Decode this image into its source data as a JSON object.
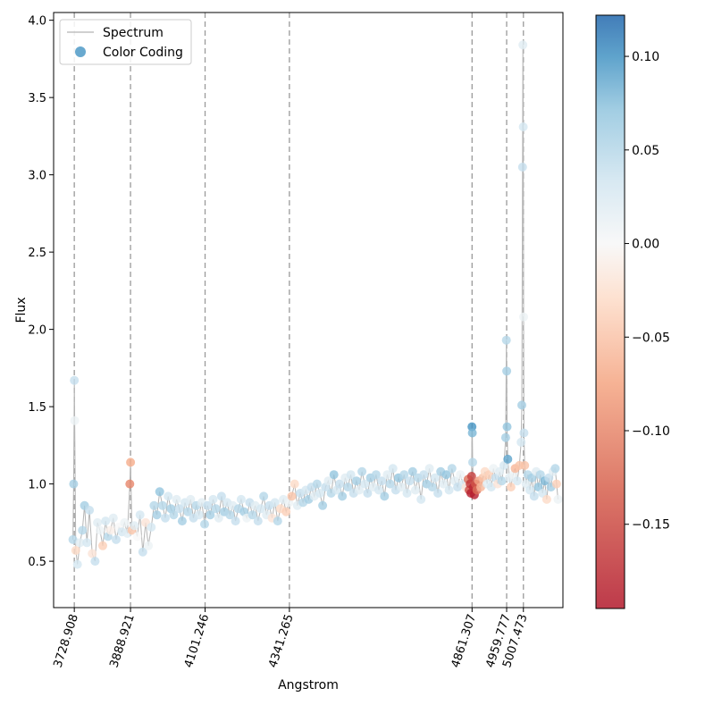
{
  "chart_data": {
    "type": "scatter",
    "title": "",
    "xlabel": "Angstrom",
    "ylabel": "Flux",
    "xlim": [
      3670,
      5120
    ],
    "ylim": [
      0.2,
      4.05
    ],
    "y_ticks": [
      "0.5",
      "1.0",
      "1.5",
      "2.0",
      "2.5",
      "3.0",
      "3.5",
      "4.0"
    ],
    "y_tick_values": [
      0.5,
      1.0,
      1.5,
      2.0,
      2.5,
      3.0,
      3.5,
      4.0
    ],
    "line_markers": [
      {
        "label": "3728.908",
        "x": 3728.908
      },
      {
        "label": "3888.921",
        "x": 3888.921
      },
      {
        "label": "4101.246",
        "x": 4101.246
      },
      {
        "label": "4341.265",
        "x": 4341.265
      },
      {
        "label": "4861.307",
        "x": 4861.307
      },
      {
        "label": "4959.777",
        "x": 4959.777
      },
      {
        "label": "5007.473",
        "x": 5007.473
      }
    ],
    "legend": {
      "position": "top-left",
      "entries": [
        {
          "label": "Spectrum",
          "kind": "line"
        },
        {
          "label": "Color Coding",
          "kind": "marker"
        }
      ]
    },
    "colorbar": {
      "range": [
        -0.195,
        0.122
      ],
      "ticks": [
        "0.10",
        "0.05",
        "0.00",
        "−0.05",
        "−0.10",
        "−0.15"
      ],
      "tick_values": [
        0.1,
        0.05,
        0.0,
        -0.05,
        -0.1,
        -0.15
      ],
      "colormap": "RdBu"
    },
    "spectrum_points": [
      {
        "x": 3725,
        "y": 0.64,
        "c": 0.05
      },
      {
        "x": 3727,
        "y": 1.0,
        "c": 0.06
      },
      {
        "x": 3729,
        "y": 1.67,
        "c": 0.04
      },
      {
        "x": 3730,
        "y": 1.41,
        "c": 0.01
      },
      {
        "x": 3733,
        "y": 0.57,
        "c": -0.03
      },
      {
        "x": 3738,
        "y": 0.48,
        "c": 0.03
      },
      {
        "x": 3745,
        "y": 0.62,
        "c": 0.02
      },
      {
        "x": 3752,
        "y": 0.7,
        "c": 0.05
      },
      {
        "x": 3758,
        "y": 0.86,
        "c": 0.06
      },
      {
        "x": 3765,
        "y": 0.62,
        "c": 0.03
      },
      {
        "x": 3772,
        "y": 0.83,
        "c": 0.04
      },
      {
        "x": 3780,
        "y": 0.55,
        "c": -0.02
      },
      {
        "x": 3788,
        "y": 0.5,
        "c": 0.04
      },
      {
        "x": 3795,
        "y": 0.75,
        "c": 0.02
      },
      {
        "x": 3802,
        "y": 0.7,
        "c": 0.01
      },
      {
        "x": 3810,
        "y": 0.6,
        "c": -0.04
      },
      {
        "x": 3818,
        "y": 0.76,
        "c": 0.03
      },
      {
        "x": 3825,
        "y": 0.66,
        "c": 0.05
      },
      {
        "x": 3832,
        "y": 0.7,
        "c": -0.01
      },
      {
        "x": 3840,
        "y": 0.78,
        "c": 0.02
      },
      {
        "x": 3848,
        "y": 0.64,
        "c": 0.04
      },
      {
        "x": 3856,
        "y": 0.72,
        "c": 0.0
      },
      {
        "x": 3864,
        "y": 0.69,
        "c": 0.03
      },
      {
        "x": 3872,
        "y": 0.75,
        "c": 0.01
      },
      {
        "x": 3880,
        "y": 0.68,
        "c": 0.02
      },
      {
        "x": 3887,
        "y": 1.0,
        "c": -0.1
      },
      {
        "x": 3889,
        "y": 1.14,
        "c": -0.07
      },
      {
        "x": 3893,
        "y": 0.7,
        "c": -0.05
      },
      {
        "x": 3900,
        "y": 0.73,
        "c": 0.02
      },
      {
        "x": 3908,
        "y": 0.66,
        "c": 0.0
      },
      {
        "x": 3916,
        "y": 0.8,
        "c": 0.03
      },
      {
        "x": 3924,
        "y": 0.56,
        "c": 0.04
      },
      {
        "x": 3932,
        "y": 0.75,
        "c": -0.02
      },
      {
        "x": 3940,
        "y": 0.6,
        "c": 0.01
      },
      {
        "x": 3948,
        "y": 0.72,
        "c": 0.03
      },
      {
        "x": 3956,
        "y": 0.86,
        "c": 0.05
      },
      {
        "x": 3964,
        "y": 0.8,
        "c": 0.06
      },
      {
        "x": 3972,
        "y": 0.95,
        "c": 0.07
      },
      {
        "x": 3980,
        "y": 0.86,
        "c": 0.05
      },
      {
        "x": 3988,
        "y": 0.78,
        "c": 0.04
      },
      {
        "x": 3996,
        "y": 0.92,
        "c": 0.03
      },
      {
        "x": 4004,
        "y": 0.84,
        "c": 0.06
      },
      {
        "x": 4012,
        "y": 0.8,
        "c": 0.05
      },
      {
        "x": 4020,
        "y": 0.9,
        "c": 0.02
      },
      {
        "x": 4028,
        "y": 0.84,
        "c": 0.04
      },
      {
        "x": 4036,
        "y": 0.76,
        "c": 0.06
      },
      {
        "x": 4044,
        "y": 0.88,
        "c": 0.03
      },
      {
        "x": 4052,
        "y": 0.82,
        "c": 0.05
      },
      {
        "x": 4060,
        "y": 0.9,
        "c": 0.02
      },
      {
        "x": 4068,
        "y": 0.78,
        "c": 0.04
      },
      {
        "x": 4076,
        "y": 0.86,
        "c": 0.05
      },
      {
        "x": 4084,
        "y": 0.8,
        "c": 0.03
      },
      {
        "x": 4092,
        "y": 0.88,
        "c": 0.02
      },
      {
        "x": 4100,
        "y": 0.74,
        "c": 0.05
      },
      {
        "x": 4108,
        "y": 0.86,
        "c": 0.04
      },
      {
        "x": 4116,
        "y": 0.8,
        "c": 0.06
      },
      {
        "x": 4124,
        "y": 0.9,
        "c": 0.03
      },
      {
        "x": 4132,
        "y": 0.84,
        "c": 0.05
      },
      {
        "x": 4140,
        "y": 0.78,
        "c": 0.02
      },
      {
        "x": 4148,
        "y": 0.92,
        "c": 0.04
      },
      {
        "x": 4156,
        "y": 0.82,
        "c": 0.06
      },
      {
        "x": 4164,
        "y": 0.88,
        "c": 0.03
      },
      {
        "x": 4172,
        "y": 0.8,
        "c": 0.05
      },
      {
        "x": 4180,
        "y": 0.86,
        "c": 0.02
      },
      {
        "x": 4188,
        "y": 0.76,
        "c": 0.04
      },
      {
        "x": 4196,
        "y": 0.84,
        "c": 0.05
      },
      {
        "x": 4204,
        "y": 0.9,
        "c": 0.03
      },
      {
        "x": 4212,
        "y": 0.82,
        "c": 0.06
      },
      {
        "x": 4220,
        "y": 0.78,
        "c": 0.01
      },
      {
        "x": 4228,
        "y": 0.88,
        "c": 0.04
      },
      {
        "x": 4236,
        "y": 0.8,
        "c": 0.05
      },
      {
        "x": 4244,
        "y": 0.86,
        "c": 0.02
      },
      {
        "x": 4252,
        "y": 0.76,
        "c": 0.04
      },
      {
        "x": 4260,
        "y": 0.84,
        "c": 0.03
      },
      {
        "x": 4268,
        "y": 0.92,
        "c": 0.05
      },
      {
        "x": 4276,
        "y": 0.8,
        "c": 0.02
      },
      {
        "x": 4284,
        "y": 0.86,
        "c": 0.04
      },
      {
        "x": 4292,
        "y": 0.78,
        "c": -0.02
      },
      {
        "x": 4300,
        "y": 0.88,
        "c": 0.03
      },
      {
        "x": 4308,
        "y": 0.76,
        "c": 0.05
      },
      {
        "x": 4316,
        "y": 0.84,
        "c": -0.03
      },
      {
        "x": 4324,
        "y": 0.9,
        "c": 0.02
      },
      {
        "x": 4332,
        "y": 0.82,
        "c": -0.04
      },
      {
        "x": 4340,
        "y": 0.88,
        "c": 0.01
      },
      {
        "x": 4348,
        "y": 0.92,
        "c": -0.05
      },
      {
        "x": 4356,
        "y": 1.0,
        "c": -0.03
      },
      {
        "x": 4364,
        "y": 0.86,
        "c": 0.02
      },
      {
        "x": 4372,
        "y": 0.94,
        "c": 0.04
      },
      {
        "x": 4380,
        "y": 0.88,
        "c": 0.05
      },
      {
        "x": 4388,
        "y": 0.96,
        "c": 0.03
      },
      {
        "x": 4396,
        "y": 0.9,
        "c": 0.06
      },
      {
        "x": 4404,
        "y": 0.98,
        "c": 0.04
      },
      {
        "x": 4412,
        "y": 0.92,
        "c": 0.02
      },
      {
        "x": 4420,
        "y": 1.0,
        "c": 0.05
      },
      {
        "x": 4428,
        "y": 0.94,
        "c": 0.03
      },
      {
        "x": 4436,
        "y": 0.86,
        "c": 0.06
      },
      {
        "x": 4444,
        "y": 0.98,
        "c": 0.04
      },
      {
        "x": 4452,
        "y": 1.02,
        "c": 0.02
      },
      {
        "x": 4460,
        "y": 0.94,
        "c": 0.05
      },
      {
        "x": 4468,
        "y": 1.06,
        "c": 0.07
      },
      {
        "x": 4476,
        "y": 0.96,
        "c": 0.03
      },
      {
        "x": 4484,
        "y": 1.0,
        "c": 0.04
      },
      {
        "x": 4492,
        "y": 0.92,
        "c": 0.06
      },
      {
        "x": 4500,
        "y": 1.04,
        "c": 0.02
      },
      {
        "x": 4508,
        "y": 0.98,
        "c": 0.05
      },
      {
        "x": 4516,
        "y": 1.06,
        "c": 0.03
      },
      {
        "x": 4524,
        "y": 0.94,
        "c": 0.04
      },
      {
        "x": 4532,
        "y": 1.02,
        "c": 0.06
      },
      {
        "x": 4540,
        "y": 0.96,
        "c": 0.02
      },
      {
        "x": 4548,
        "y": 1.08,
        "c": 0.05
      },
      {
        "x": 4556,
        "y": 1.0,
        "c": 0.03
      },
      {
        "x": 4564,
        "y": 0.94,
        "c": 0.04
      },
      {
        "x": 4572,
        "y": 1.04,
        "c": 0.06
      },
      {
        "x": 4580,
        "y": 0.98,
        "c": 0.02
      },
      {
        "x": 4588,
        "y": 1.06,
        "c": 0.05
      },
      {
        "x": 4596,
        "y": 0.96,
        "c": 0.03
      },
      {
        "x": 4604,
        "y": 1.02,
        "c": 0.04
      },
      {
        "x": 4612,
        "y": 0.92,
        "c": 0.06
      },
      {
        "x": 4620,
        "y": 1.06,
        "c": 0.02
      },
      {
        "x": 4628,
        "y": 1.0,
        "c": 0.05
      },
      {
        "x": 4636,
        "y": 1.1,
        "c": 0.03
      },
      {
        "x": 4644,
        "y": 0.96,
        "c": 0.04
      },
      {
        "x": 4652,
        "y": 1.04,
        "c": 0.07
      },
      {
        "x": 4660,
        "y": 0.98,
        "c": 0.02
      },
      {
        "x": 4668,
        "y": 1.06,
        "c": 0.05
      },
      {
        "x": 4676,
        "y": 0.94,
        "c": 0.03
      },
      {
        "x": 4684,
        "y": 1.02,
        "c": 0.04
      },
      {
        "x": 4692,
        "y": 1.08,
        "c": 0.06
      },
      {
        "x": 4700,
        "y": 0.96,
        "c": 0.02
      },
      {
        "x": 4708,
        "y": 1.04,
        "c": 0.05
      },
      {
        "x": 4716,
        "y": 0.9,
        "c": 0.03
      },
      {
        "x": 4724,
        "y": 1.06,
        "c": 0.04
      },
      {
        "x": 4732,
        "y": 1.0,
        "c": 0.06
      },
      {
        "x": 4740,
        "y": 1.1,
        "c": 0.02
      },
      {
        "x": 4748,
        "y": 0.98,
        "c": 0.05
      },
      {
        "x": 4756,
        "y": 1.04,
        "c": 0.03
      },
      {
        "x": 4764,
        "y": 0.94,
        "c": 0.04
      },
      {
        "x": 4772,
        "y": 1.08,
        "c": 0.06
      },
      {
        "x": 4780,
        "y": 1.0,
        "c": 0.02
      },
      {
        "x": 4788,
        "y": 1.06,
        "c": 0.07
      },
      {
        "x": 4796,
        "y": 0.96,
        "c": 0.03
      },
      {
        "x": 4804,
        "y": 1.1,
        "c": 0.05
      },
      {
        "x": 4812,
        "y": 1.02,
        "c": 0.02
      },
      {
        "x": 4820,
        "y": 0.98,
        "c": 0.04
      },
      {
        "x": 4828,
        "y": 1.06,
        "c": 0.01
      },
      {
        "x": 4836,
        "y": 1.0,
        "c": 0.03
      },
      {
        "x": 4844,
        "y": 0.98,
        "c": -0.02
      },
      {
        "x": 4850,
        "y": 1.03,
        "c": -0.12
      },
      {
        "x": 4853,
        "y": 0.96,
        "c": -0.15
      },
      {
        "x": 4856,
        "y": 1.0,
        "c": -0.17
      },
      {
        "x": 4858,
        "y": 0.94,
        "c": -0.19
      },
      {
        "x": 4860,
        "y": 1.05,
        "c": -0.16
      },
      {
        "x": 4861,
        "y": 1.37,
        "c": 0.1
      },
      {
        "x": 4862,
        "y": 1.33,
        "c": 0.08
      },
      {
        "x": 4863,
        "y": 1.14,
        "c": 0.05
      },
      {
        "x": 4865,
        "y": 0.98,
        "c": -0.18
      },
      {
        "x": 4868,
        "y": 0.93,
        "c": -0.19
      },
      {
        "x": 4871,
        "y": 1.0,
        "c": -0.14
      },
      {
        "x": 4875,
        "y": 0.96,
        "c": -0.12
      },
      {
        "x": 4880,
        "y": 1.02,
        "c": -0.08
      },
      {
        "x": 4886,
        "y": 0.98,
        "c": -0.06
      },
      {
        "x": 4892,
        "y": 1.04,
        "c": -0.05
      },
      {
        "x": 4898,
        "y": 1.08,
        "c": -0.03
      },
      {
        "x": 4904,
        "y": 1.0,
        "c": 0.02
      },
      {
        "x": 4910,
        "y": 1.06,
        "c": -0.04
      },
      {
        "x": 4916,
        "y": 0.98,
        "c": 0.03
      },
      {
        "x": 4922,
        "y": 1.1,
        "c": 0.01
      },
      {
        "x": 4928,
        "y": 1.04,
        "c": 0.04
      },
      {
        "x": 4934,
        "y": 1.0,
        "c": -0.02
      },
      {
        "x": 4940,
        "y": 1.08,
        "c": 0.02
      },
      {
        "x": 4946,
        "y": 1.02,
        "c": 0.05
      },
      {
        "x": 4952,
        "y": 1.12,
        "c": 0.03
      },
      {
        "x": 4957,
        "y": 1.3,
        "c": 0.06
      },
      {
        "x": 4959,
        "y": 1.93,
        "c": 0.05
      },
      {
        "x": 4960,
        "y": 1.73,
        "c": 0.06
      },
      {
        "x": 4961,
        "y": 1.37,
        "c": 0.07
      },
      {
        "x": 4963,
        "y": 1.16,
        "c": 0.09
      },
      {
        "x": 4967,
        "y": 1.04,
        "c": 0.02
      },
      {
        "x": 4972,
        "y": 0.98,
        "c": -0.04
      },
      {
        "x": 4978,
        "y": 1.06,
        "c": 0.01
      },
      {
        "x": 4984,
        "y": 1.1,
        "c": -0.06
      },
      {
        "x": 4990,
        "y": 1.02,
        "c": 0.03
      },
      {
        "x": 4996,
        "y": 1.12,
        "c": -0.05
      },
      {
        "x": 5001,
        "y": 1.27,
        "c": 0.03
      },
      {
        "x": 5003,
        "y": 1.51,
        "c": 0.06
      },
      {
        "x": 5005,
        "y": 3.05,
        "c": 0.04
      },
      {
        "x": 5006,
        "y": 3.84,
        "c": 0.02
      },
      {
        "x": 5007,
        "y": 3.31,
        "c": 0.03
      },
      {
        "x": 5008,
        "y": 2.08,
        "c": 0.01
      },
      {
        "x": 5009,
        "y": 1.33,
        "c": 0.04
      },
      {
        "x": 5011,
        "y": 1.12,
        "c": -0.05
      },
      {
        "x": 5015,
        "y": 1.0,
        "c": 0.02
      },
      {
        "x": 5020,
        "y": 1.06,
        "c": 0.05
      },
      {
        "x": 5026,
        "y": 0.96,
        "c": 0.03
      },
      {
        "x": 5032,
        "y": 1.04,
        "c": 0.06
      },
      {
        "x": 5038,
        "y": 0.92,
        "c": 0.04
      },
      {
        "x": 5044,
        "y": 1.08,
        "c": 0.02
      },
      {
        "x": 5050,
        "y": 0.98,
        "c": 0.07
      },
      {
        "x": 5056,
        "y": 1.06,
        "c": 0.05
      },
      {
        "x": 5062,
        "y": 0.94,
        "c": 0.03
      },
      {
        "x": 5068,
        "y": 1.02,
        "c": 0.08
      },
      {
        "x": 5074,
        "y": 0.9,
        "c": -0.03
      },
      {
        "x": 5080,
        "y": 1.04,
        "c": 0.04
      },
      {
        "x": 5086,
        "y": 0.98,
        "c": 0.06
      },
      {
        "x": 5092,
        "y": 1.08,
        "c": 0.02
      },
      {
        "x": 5098,
        "y": 1.1,
        "c": 0.05
      },
      {
        "x": 5102,
        "y": 1.0,
        "c": -0.04
      },
      {
        "x": 5106,
        "y": 0.9,
        "c": 0.01
      }
    ]
  }
}
